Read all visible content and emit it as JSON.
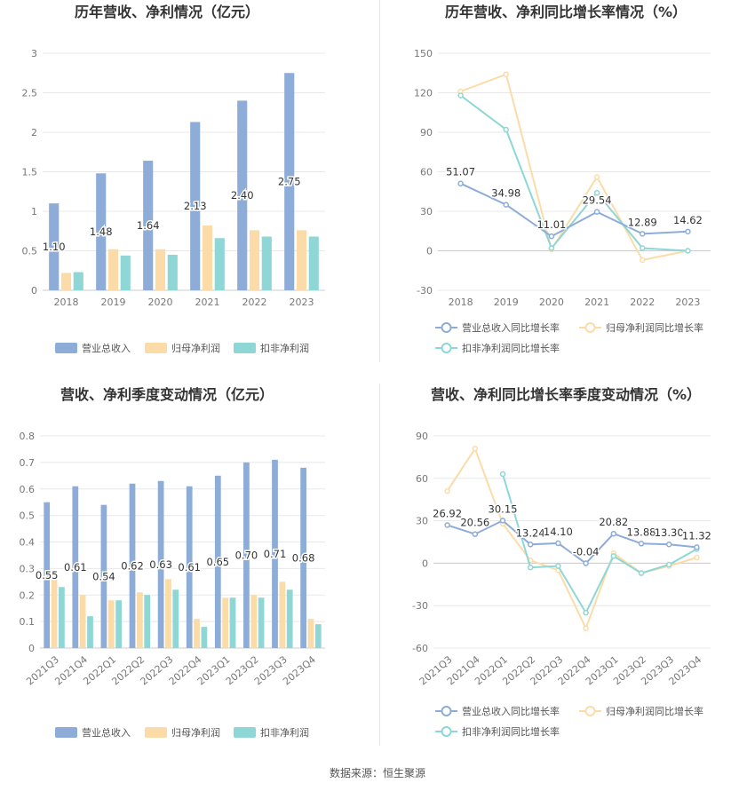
{
  "source_text": "数据来源：恒生聚源",
  "chart_data": [
    {
      "id": "annual-bar",
      "type": "bar",
      "title": "历年营收、净利情况（亿元）",
      "categories": [
        "2018",
        "2019",
        "2020",
        "2021",
        "2022",
        "2023"
      ],
      "series": [
        {
          "name": "营业总收入",
          "color": "#8eacd8",
          "values": [
            1.1,
            1.48,
            1.64,
            2.13,
            2.4,
            2.75
          ],
          "labels": [
            "1.10",
            "1.48",
            "1.64",
            "2.13",
            "2.40",
            "2.75"
          ]
        },
        {
          "name": "归母净利润",
          "color": "#fbdca8",
          "values": [
            0.22,
            0.52,
            0.52,
            0.82,
            0.76,
            0.76
          ]
        },
        {
          "name": "扣非净利润",
          "color": "#8fd6d6",
          "values": [
            0.23,
            0.44,
            0.45,
            0.66,
            0.68,
            0.68
          ]
        }
      ],
      "yticks": [
        "0",
        "0.5",
        "1",
        "1.5",
        "2",
        "2.5",
        "3"
      ],
      "ylim": [
        0,
        3
      ],
      "grid": true,
      "legend": "bottom"
    },
    {
      "id": "annual-line",
      "type": "line",
      "title": "历年营收、净利同比增长率情况（%）",
      "categories": [
        "2018",
        "2019",
        "2020",
        "2021",
        "2022",
        "2023"
      ],
      "series": [
        {
          "name": "营业总收入同比增长率",
          "color": "#8eacd8",
          "values": [
            51.07,
            34.98,
            11.01,
            29.54,
            12.89,
            14.62
          ],
          "labels": [
            "51.07",
            "34.98",
            "11.01",
            "29.54",
            "12.89",
            "14.62"
          ]
        },
        {
          "name": "归母净利润同比增长率",
          "color": "#fbdca8",
          "values": [
            121,
            134,
            1,
            56,
            -7,
            0
          ]
        },
        {
          "name": "扣非净利润同比增长率",
          "color": "#8fd6d6",
          "values": [
            118,
            92,
            2,
            44,
            2,
            0
          ]
        }
      ],
      "yticks": [
        "-30",
        "0",
        "30",
        "60",
        "90",
        "120",
        "150"
      ],
      "ylim": [
        -30,
        150
      ],
      "grid": true,
      "legend": "bottom"
    },
    {
      "id": "quarter-bar",
      "type": "bar",
      "title": "营收、净利季度变动情况（亿元）",
      "categories": [
        "2021Q3",
        "2021Q4",
        "2022Q1",
        "2022Q2",
        "2022Q3",
        "2022Q4",
        "2023Q1",
        "2023Q2",
        "2023Q3",
        "2023Q4"
      ],
      "series": [
        {
          "name": "营业总收入",
          "color": "#8eacd8",
          "values": [
            0.55,
            0.61,
            0.54,
            0.62,
            0.63,
            0.61,
            0.65,
            0.7,
            0.71,
            0.68
          ],
          "labels": [
            "0.55",
            "0.61",
            "0.54",
            "0.62",
            "0.63",
            "0.61",
            "0.65",
            "0.70",
            "0.71",
            "0.68"
          ]
        },
        {
          "name": "归母净利润",
          "color": "#fbdca8",
          "values": [
            0.26,
            0.2,
            0.18,
            0.21,
            0.26,
            0.11,
            0.19,
            0.2,
            0.25,
            0.11
          ]
        },
        {
          "name": "扣非净利润",
          "color": "#8fd6d6",
          "values": [
            0.23,
            0.12,
            0.18,
            0.2,
            0.22,
            0.08,
            0.19,
            0.19,
            0.22,
            0.09
          ]
        }
      ],
      "yticks": [
        "0",
        "0.1",
        "0.2",
        "0.3",
        "0.4",
        "0.5",
        "0.6",
        "0.7",
        "0.8"
      ],
      "ylim": [
        0,
        0.8
      ],
      "grid": true,
      "legend": "bottom"
    },
    {
      "id": "quarter-line",
      "type": "line",
      "title": "营收、净利同比增长率季度变动情况（%）",
      "categories": [
        "2021Q3",
        "2021Q4",
        "2022Q1",
        "2022Q2",
        "2022Q3",
        "2022Q4",
        "2023Q1",
        "2023Q2",
        "2023Q3",
        "2023Q4"
      ],
      "series": [
        {
          "name": "营业总收入同比增长率",
          "color": "#8eacd8",
          "values": [
            26.92,
            20.56,
            30.15,
            13.24,
            14.1,
            -0.04,
            20.82,
            13.88,
            13.3,
            11.32
          ],
          "labels": [
            "26.92",
            "20.56",
            "30.15",
            "13.24",
            "14.10",
            "-0.04",
            "20.82",
            "13.88",
            "13.30",
            "11.32"
          ]
        },
        {
          "name": "归母净利润同比增长率",
          "color": "#fbdca8",
          "values": [
            51,
            81,
            28,
            2,
            -5,
            -46,
            7,
            -7,
            -2,
            4
          ]
        },
        {
          "name": "扣非净利润同比增长率",
          "color": "#8fd6d6",
          "values": [
            null,
            null,
            63,
            -3,
            -2,
            -35,
            5,
            -7,
            -1,
            10
          ]
        }
      ],
      "yticks": [
        "-60",
        "-30",
        "0",
        "30",
        "60",
        "90"
      ],
      "ylim": [
        -60,
        90
      ],
      "grid": true,
      "legend": "bottom"
    }
  ]
}
